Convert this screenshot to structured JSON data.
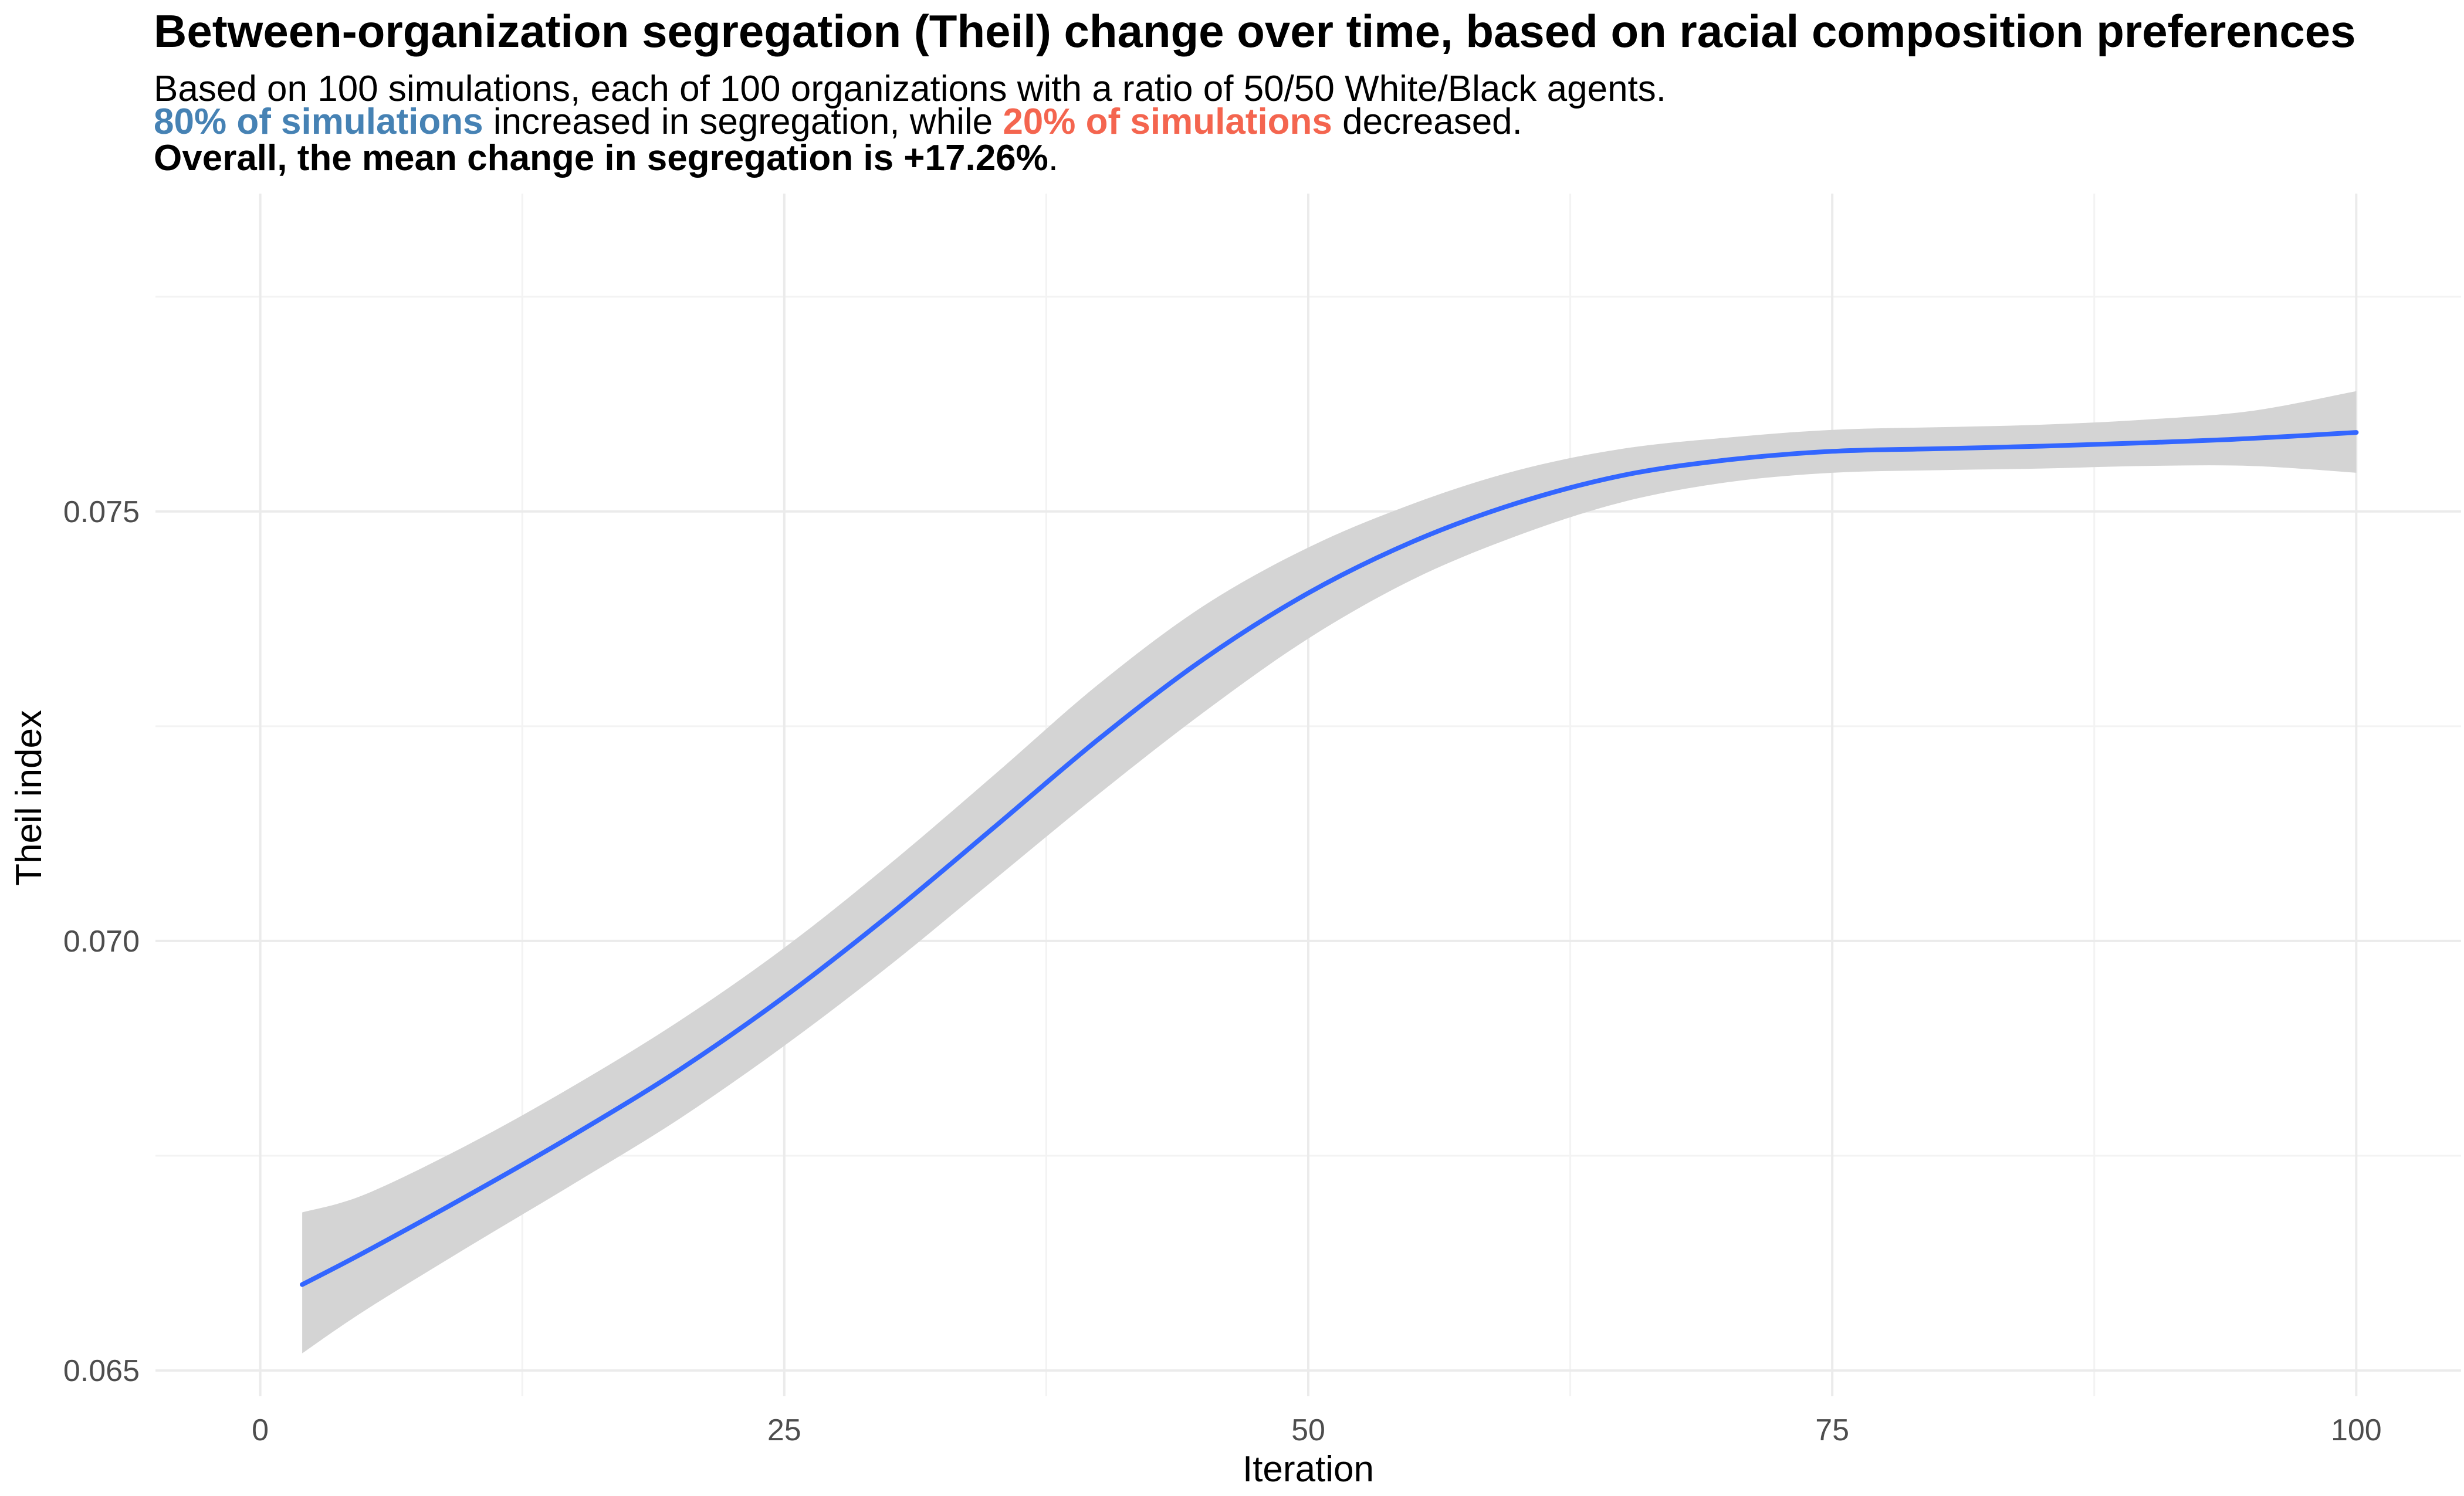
{
  "chart_data": {
    "type": "line",
    "title": "Between-organization segregation (Theil) change over time, based on racial composition preferences",
    "subtitle": {
      "line1": "Based on 100 simulations, each of 100 organizations with a ratio of 50/50 White/Black agents.",
      "line2": {
        "highlight_up": "80% of simulations",
        "text_mid": " increased in segregation, while ",
        "highlight_down": "20% of simulations",
        "text_end": " decreased."
      },
      "line3": {
        "bold": "Overall, the mean change in segregation is +17.26%",
        "end": "."
      }
    },
    "xlabel": "Iteration",
    "ylabel": "Theil index",
    "xlim": [
      -5,
      105
    ],
    "ylim": [
      0.0647,
      0.0787
    ],
    "x_ticks": [
      0,
      25,
      50,
      75,
      100
    ],
    "x_tick_labels": [
      "0",
      "25",
      "50",
      "75",
      "100"
    ],
    "y_ticks": [
      0.065,
      0.07,
      0.075
    ],
    "y_tick_labels": [
      "0.065",
      "0.070",
      "0.075"
    ],
    "grid": true,
    "legend": "none",
    "series": [
      {
        "x": [
          2,
          5,
          10,
          15,
          20,
          25,
          30,
          35,
          40,
          45,
          50,
          55,
          60,
          65,
          70,
          75,
          80,
          85,
          90,
          95,
          100
        ],
        "y": [
          0.066,
          0.06638,
          0.06705,
          0.06775,
          0.0685,
          0.06935,
          0.0703,
          0.07132,
          0.07235,
          0.07328,
          0.07405,
          0.07465,
          0.0751,
          0.07542,
          0.0756,
          0.0757,
          0.07573,
          0.07576,
          0.0758,
          0.07585,
          0.07592
        ],
        "lower": [
          0.0652,
          0.0657,
          0.06645,
          0.06718,
          0.06793,
          0.06878,
          0.06971,
          0.07071,
          0.07171,
          0.07266,
          0.07352,
          0.07421,
          0.07472,
          0.07511,
          0.07534,
          0.07545,
          0.07548,
          0.0755,
          0.07553,
          0.07553,
          0.07545
        ],
        "upper": [
          0.06684,
          0.06705,
          0.06764,
          0.06832,
          0.06907,
          0.06992,
          0.07089,
          0.07193,
          0.07299,
          0.0739,
          0.07458,
          0.07509,
          0.07548,
          0.07573,
          0.07586,
          0.07595,
          0.07598,
          0.07601,
          0.07607,
          0.07617,
          0.0764
        ]
      }
    ],
    "colors": {
      "line": "#3366ff",
      "ribbon": "#d4d4d4",
      "highlight_up": "#4682b4",
      "highlight_down": "#f4654f"
    }
  }
}
